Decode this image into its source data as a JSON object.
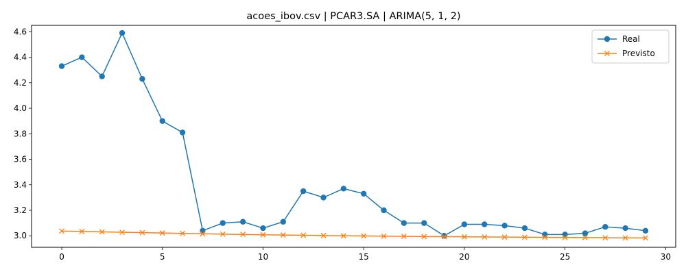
{
  "chart_data": {
    "type": "line",
    "title": "acoes_ibov.csv | PCAR3.SA | ARIMA(5, 1, 2)",
    "xlabel": "",
    "ylabel": "",
    "xlim": [
      -1.5,
      30.5
    ],
    "ylim": [
      2.91,
      4.65
    ],
    "xticks": [
      0,
      5,
      10,
      15,
      20,
      25,
      30
    ],
    "xtick_labels": [
      "0",
      "5",
      "10",
      "15",
      "20",
      "25",
      "30"
    ],
    "yticks": [
      3.0,
      3.2,
      3.4,
      3.6,
      3.8,
      4.0,
      4.2,
      4.4,
      4.6
    ],
    "ytick_labels": [
      "3.0",
      "3.2",
      "3.4",
      "3.6",
      "3.8",
      "4.0",
      "4.2",
      "4.4",
      "4.6"
    ],
    "grid": false,
    "legend_position": "top-right",
    "x": [
      0,
      1,
      2,
      3,
      4,
      5,
      6,
      7,
      8,
      9,
      10,
      11,
      12,
      13,
      14,
      15,
      16,
      17,
      18,
      19,
      20,
      21,
      22,
      23,
      24,
      25,
      26,
      27,
      28,
      29
    ],
    "series": [
      {
        "name": "Real",
        "color": "#1f77b4",
        "marker": "circle",
        "values": [
          4.33,
          4.4,
          4.25,
          4.59,
          4.23,
          3.9,
          3.81,
          3.04,
          3.1,
          3.11,
          3.06,
          3.11,
          3.35,
          3.3,
          3.37,
          3.33,
          3.2,
          3.1,
          3.1,
          3.0,
          3.09,
          3.09,
          3.08,
          3.06,
          3.01,
          3.01,
          3.02,
          3.07,
          3.06,
          3.04
        ]
      },
      {
        "name": "Previsto",
        "color": "#ff7f0e",
        "marker": "x",
        "values": [
          3.037,
          3.034,
          3.031,
          3.028,
          3.025,
          3.022,
          3.019,
          3.016,
          3.013,
          3.011,
          3.008,
          3.006,
          3.004,
          3.002,
          3.0,
          2.999,
          2.997,
          2.996,
          2.994,
          2.993,
          2.992,
          2.991,
          2.99,
          2.989,
          2.988,
          2.987,
          2.986,
          2.985,
          2.984,
          2.983
        ]
      }
    ]
  }
}
